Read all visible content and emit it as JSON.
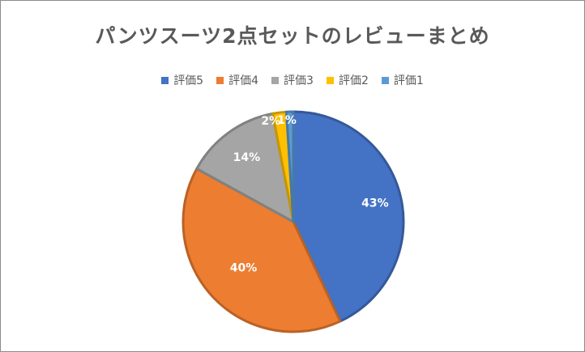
{
  "chart_data": {
    "type": "pie",
    "title": "パンツスーツ2点セットのレビューまとめ",
    "categories": [
      "評価5",
      "評価4",
      "評価3",
      "評価2",
      "評価1"
    ],
    "values": [
      43,
      40,
      14,
      2,
      1
    ],
    "data_labels": [
      "43%",
      "40%",
      "14%",
      "2%",
      "1%"
    ],
    "colors": [
      "#4472C4",
      "#ED7D31",
      "#A5A5A5",
      "#FFC000",
      "#5B9BD5"
    ],
    "legend_position": "top"
  }
}
